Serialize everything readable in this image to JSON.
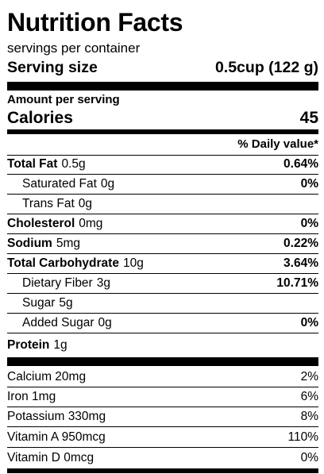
{
  "label": {
    "title": "Nutrition Facts",
    "servings_per_container": "servings per container",
    "serving_size_label": "Serving size",
    "serving_size_value": "0.5cup (122 g)",
    "amount_per_serving": "Amount per serving",
    "calories_label": "Calories",
    "calories_value": "45",
    "daily_value_header": "% Daily value*"
  },
  "nutrients": [
    {
      "name": "Total Fat",
      "amount": "0.5g",
      "daily_value": "0.64%",
      "bold_name": true,
      "indent": false
    },
    {
      "name": "Saturated Fat",
      "amount": "0g",
      "daily_value": "0%",
      "bold_name": false,
      "indent": true
    },
    {
      "name": "Trans Fat",
      "amount": "0g",
      "daily_value": "",
      "bold_name": false,
      "indent": true
    },
    {
      "name": "Cholesterol",
      "amount": "0mg",
      "daily_value": "0%",
      "bold_name": true,
      "indent": false
    },
    {
      "name": "Sodium",
      "amount": "5mg",
      "daily_value": "0.22%",
      "bold_name": true,
      "indent": false
    },
    {
      "name": "Total Carbohydrate",
      "amount": "10g",
      "daily_value": "3.64%",
      "bold_name": true,
      "indent": false
    },
    {
      "name": "Dietary Fiber",
      "amount": "3g",
      "daily_value": "10.71%",
      "bold_name": false,
      "indent": true
    },
    {
      "name": "Sugar",
      "amount": "5g",
      "daily_value": "",
      "bold_name": false,
      "indent": true
    },
    {
      "name": "Added Sugar",
      "amount": "0g",
      "daily_value": "0%",
      "bold_name": false,
      "indent": true
    },
    {
      "name": "Protein",
      "amount": "1g",
      "daily_value": "",
      "bold_name": true,
      "indent": false
    }
  ],
  "vitamins": [
    {
      "name": "Calcium",
      "amount": "20mg",
      "daily_value": "2%"
    },
    {
      "name": "Iron",
      "amount": "1mg",
      "daily_value": "6%"
    },
    {
      "name": "Potassium",
      "amount": "330mg",
      "daily_value": "8%"
    },
    {
      "name": "Vitamin A",
      "amount": "950mcg",
      "daily_value": "110%"
    },
    {
      "name": "Vitamin D",
      "amount": "0mcg",
      "daily_value": "0%"
    }
  ]
}
